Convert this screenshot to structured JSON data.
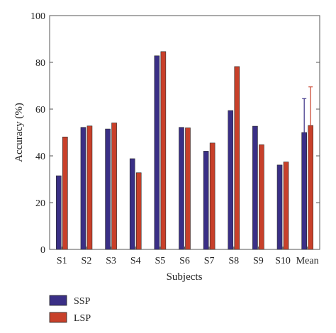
{
  "chart_data": {
    "type": "bar",
    "xlabel": "Subjects",
    "ylabel": "Accuracy (%)",
    "ylim": [
      0,
      100
    ],
    "yticks": [
      0,
      20,
      40,
      60,
      80,
      100
    ],
    "grid": false,
    "legend_position": "bottom-left",
    "categories": [
      "S1",
      "S2",
      "S3",
      "S4",
      "S5",
      "S6",
      "S7",
      "S8",
      "S9",
      "S10",
      "Mean"
    ],
    "series": [
      {
        "name": "SSP",
        "color": "#3a2f86",
        "values": [
          31.5,
          52.2,
          51.5,
          38.8,
          82.8,
          52.2,
          42.0,
          59.4,
          52.7,
          36.1,
          50.0
        ],
        "error": [
          null,
          null,
          null,
          null,
          null,
          null,
          null,
          null,
          null,
          null,
          14.5
        ]
      },
      {
        "name": "LSP",
        "color": "#c8402a",
        "values": [
          48.1,
          52.8,
          54.1,
          32.8,
          84.6,
          52.0,
          45.5,
          78.2,
          44.8,
          37.4,
          53.0
        ],
        "error": [
          null,
          null,
          null,
          null,
          null,
          null,
          null,
          null,
          null,
          null,
          16.5
        ]
      }
    ]
  }
}
